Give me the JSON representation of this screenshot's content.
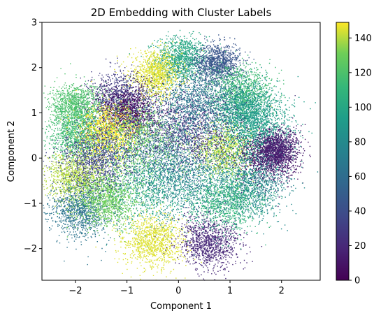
{
  "chart_data": {
    "type": "scatter",
    "title": "2D Embedding with Cluster Labels",
    "xlabel": "Component 1",
    "ylabel": "Component 2",
    "xlim": [
      -2.65,
      2.75
    ],
    "ylim": [
      -2.7,
      3.0
    ],
    "xticks": [
      -2,
      -1,
      0,
      1,
      2
    ],
    "yticks": [
      -2,
      -1,
      0,
      1,
      2,
      3
    ],
    "grid": false,
    "colormap": "viridis",
    "colorbar": {
      "range": [
        0,
        149
      ],
      "ticks": [
        0,
        20,
        40,
        60,
        80,
        100,
        120,
        140
      ]
    },
    "point_count_approx": 30000,
    "clusters": [
      {
        "label": 100,
        "center": [
          0.05,
          2.2
        ],
        "spread": 0.25
      },
      {
        "label": 45,
        "center": [
          0.75,
          2.1
        ],
        "spread": 0.22
      },
      {
        "label": 145,
        "center": [
          -0.45,
          1.85
        ],
        "spread": 0.25
      },
      {
        "label": 30,
        "center": [
          -1.15,
          1.3
        ],
        "spread": 0.3
      },
      {
        "label": 5,
        "center": [
          -1.0,
          1.0
        ],
        "spread": 0.28
      },
      {
        "label": 120,
        "center": [
          -2.0,
          1.15
        ],
        "spread": 0.25
      },
      {
        "label": 115,
        "center": [
          -1.95,
          0.5
        ],
        "spread": 0.28
      },
      {
        "label": 150,
        "center": [
          -1.35,
          0.55
        ],
        "spread": 0.3
      },
      {
        "label": 140,
        "center": [
          -2.0,
          -0.4
        ],
        "spread": 0.28
      },
      {
        "label": 65,
        "center": [
          -1.9,
          -1.15
        ],
        "spread": 0.3
      },
      {
        "label": 130,
        "center": [
          -1.4,
          -0.9
        ],
        "spread": 0.3
      },
      {
        "label": 145,
        "center": [
          -0.5,
          -1.85
        ],
        "spread": 0.3
      },
      {
        "label": 20,
        "center": [
          0.6,
          -1.85
        ],
        "spread": 0.3
      },
      {
        "label": 115,
        "center": [
          1.2,
          1.45
        ],
        "spread": 0.3
      },
      {
        "label": 90,
        "center": [
          1.3,
          1.1
        ],
        "spread": 0.3
      },
      {
        "label": 140,
        "center": [
          0.85,
          0.2
        ],
        "spread": 0.3
      },
      {
        "label": 10,
        "center": [
          1.7,
          0.0
        ],
        "spread": 0.3
      },
      {
        "label": 95,
        "center": [
          1.5,
          0.6
        ],
        "spread": 0.35
      },
      {
        "label": 80,
        "center": [
          1.4,
          -0.6
        ],
        "spread": 0.35
      },
      {
        "label": 110,
        "center": [
          0.9,
          -0.9
        ],
        "spread": 0.35
      },
      {
        "label": 55,
        "center": [
          -0.3,
          0.3
        ],
        "spread": 0.5
      },
      {
        "label": 75,
        "center": [
          0.2,
          -0.4
        ],
        "spread": 0.5
      },
      {
        "label": 100,
        "center": [
          -0.6,
          -0.6
        ],
        "spread": 0.45
      },
      {
        "label": 25,
        "center": [
          0.3,
          0.7
        ],
        "spread": 0.45
      },
      {
        "label": 130,
        "center": [
          -0.8,
          0.4
        ],
        "spread": 0.45
      },
      {
        "label": 70,
        "center": [
          0.4,
          1.3
        ],
        "spread": 0.4
      },
      {
        "label": 15,
        "center": [
          1.9,
          0.2
        ],
        "spread": 0.2
      },
      {
        "label": 35,
        "center": [
          -1.6,
          0.0
        ],
        "spread": 0.35
      }
    ]
  }
}
